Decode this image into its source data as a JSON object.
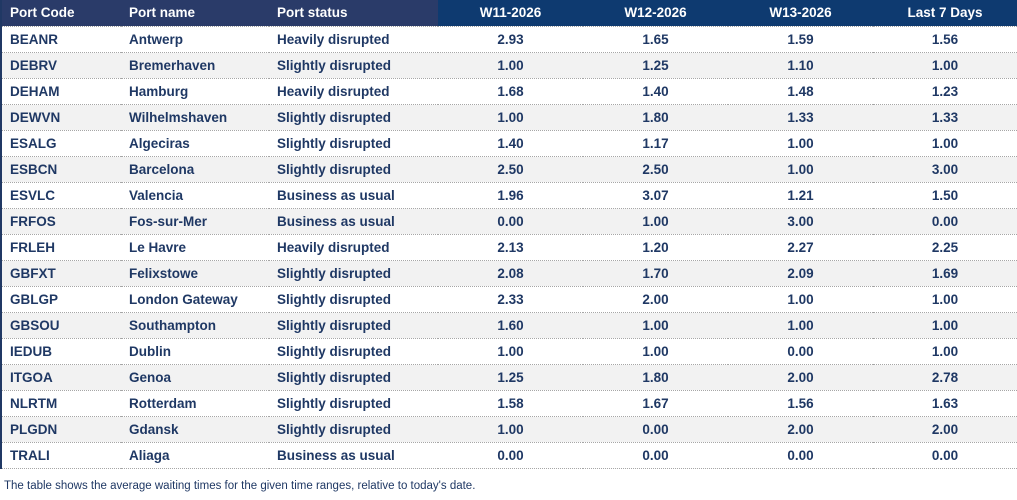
{
  "table": {
    "columns": [
      {
        "key": "code",
        "label": "Port Code",
        "numeric": false
      },
      {
        "key": "name",
        "label": "Port name",
        "numeric": false
      },
      {
        "key": "status",
        "label": "Port status",
        "numeric": false
      },
      {
        "key": "w11",
        "label": "W11-2026",
        "numeric": true
      },
      {
        "key": "w12",
        "label": "W12-2026",
        "numeric": true
      },
      {
        "key": "w13",
        "label": "W13-2026",
        "numeric": true
      },
      {
        "key": "last7",
        "label": "Last 7 Days",
        "numeric": true
      }
    ],
    "rows": [
      {
        "code": "BEANR",
        "name": "Antwerp",
        "status": "Heavily disrupted",
        "w11": "2.93",
        "w12": "1.65",
        "w13": "1.59",
        "last7": "1.56"
      },
      {
        "code": "DEBRV",
        "name": "Bremerhaven",
        "status": "Slightly disrupted",
        "w11": "1.00",
        "w12": "1.25",
        "w13": "1.10",
        "last7": "1.00"
      },
      {
        "code": "DEHAM",
        "name": "Hamburg",
        "status": "Heavily disrupted",
        "w11": "1.68",
        "w12": "1.40",
        "w13": "1.48",
        "last7": "1.23"
      },
      {
        "code": "DEWVN",
        "name": "Wilhelmshaven",
        "status": "Slightly disrupted",
        "w11": "1.00",
        "w12": "1.80",
        "w13": "1.33",
        "last7": "1.33"
      },
      {
        "code": "ESALG",
        "name": "Algeciras",
        "status": "Slightly disrupted",
        "w11": "1.40",
        "w12": "1.17",
        "w13": "1.00",
        "last7": "1.00"
      },
      {
        "code": "ESBCN",
        "name": "Barcelona",
        "status": "Slightly disrupted",
        "w11": "2.50",
        "w12": "2.50",
        "w13": "1.00",
        "last7": "3.00"
      },
      {
        "code": "ESVLC",
        "name": "Valencia",
        "status": "Business as usual",
        "w11": "1.96",
        "w12": "3.07",
        "w13": "1.21",
        "last7": "1.50"
      },
      {
        "code": "FRFOS",
        "name": "Fos-sur-Mer",
        "status": "Business as usual",
        "w11": "0.00",
        "w12": "1.00",
        "w13": "3.00",
        "last7": "0.00"
      },
      {
        "code": "FRLEH",
        "name": "Le Havre",
        "status": "Heavily disrupted",
        "w11": "2.13",
        "w12": "1.20",
        "w13": "2.27",
        "last7": "2.25"
      },
      {
        "code": "GBFXT",
        "name": "Felixstowe",
        "status": "Slightly disrupted",
        "w11": "2.08",
        "w12": "1.70",
        "w13": "2.09",
        "last7": "1.69"
      },
      {
        "code": "GBLGP",
        "name": "London Gateway",
        "status": "Slightly disrupted",
        "w11": "2.33",
        "w12": "2.00",
        "w13": "1.00",
        "last7": "1.00"
      },
      {
        "code": "GBSOU",
        "name": "Southampton",
        "status": "Slightly disrupted",
        "w11": "1.60",
        "w12": "1.00",
        "w13": "1.00",
        "last7": "1.00"
      },
      {
        "code": "IEDUB",
        "name": "Dublin",
        "status": "Slightly disrupted",
        "w11": "1.00",
        "w12": "1.00",
        "w13": "0.00",
        "last7": "1.00"
      },
      {
        "code": "ITGOA",
        "name": "Genoa",
        "status": "Slightly disrupted",
        "w11": "1.25",
        "w12": "1.80",
        "w13": "2.00",
        "last7": "2.78"
      },
      {
        "code": "NLRTM",
        "name": "Rotterdam",
        "status": "Slightly disrupted",
        "w11": "1.58",
        "w12": "1.67",
        "w13": "1.56",
        "last7": "1.63"
      },
      {
        "code": "PLGDN",
        "name": "Gdansk",
        "status": "Slightly disrupted",
        "w11": "1.00",
        "w12": "0.00",
        "w13": "2.00",
        "last7": "2.00"
      },
      {
        "code": "TRALI",
        "name": "Aliaga",
        "status": "Business as usual",
        "w11": "0.00",
        "w12": "0.00",
        "w13": "0.00",
        "last7": "0.00"
      }
    ]
  },
  "footer_note": "The table shows the average waiting times for the given time ranges, relative to today's date.",
  "colors": {
    "header_left_bg": "#2A3B69",
    "header_num_bg": "#0E3A70",
    "header_text": "#FFFFFF",
    "body_text": "#1F3864",
    "stripe_bg": "#F2F2F2",
    "separator": "#A6A6A6",
    "edge": "#203864"
  }
}
